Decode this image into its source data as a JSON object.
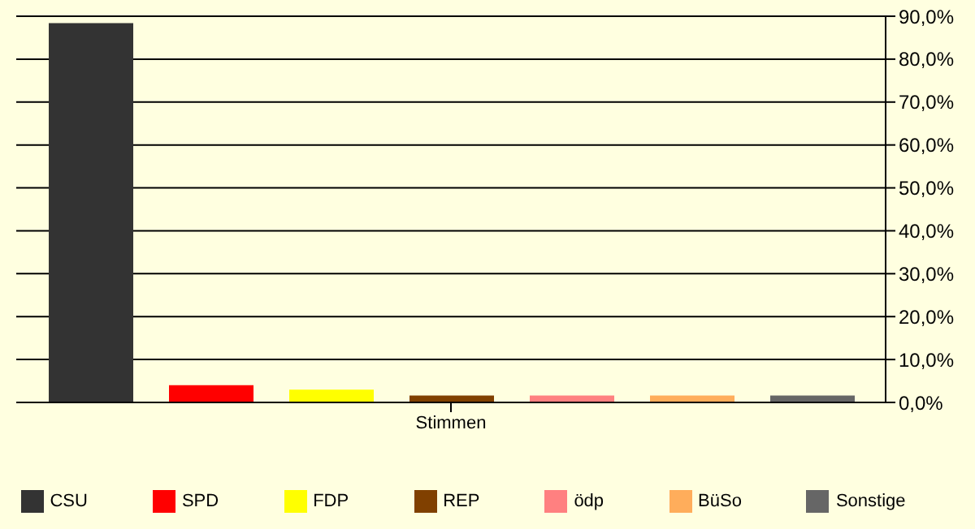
{
  "chart_data": {
    "type": "bar",
    "categories": [
      "Stimmen"
    ],
    "series": [
      {
        "name": "CSU",
        "color": "#333333",
        "values": [
          88.4
        ]
      },
      {
        "name": "SPD",
        "color": "#ff0000",
        "values": [
          4.0
        ]
      },
      {
        "name": "FDP",
        "color": "#ffff00",
        "values": [
          3.0
        ]
      },
      {
        "name": "REP",
        "color": "#804000",
        "values": [
          1.6
        ]
      },
      {
        "name": "ödp",
        "color": "#ff8080",
        "values": [
          1.6
        ]
      },
      {
        "name": "BüSo",
        "color": "#ffad5b",
        "values": [
          1.6
        ]
      },
      {
        "name": "Sonstige",
        "color": "#666666",
        "values": [
          1.6
        ]
      }
    ],
    "ylim": [
      0,
      90
    ],
    "yticks": [
      {
        "value": 0,
        "label": "0,0%"
      },
      {
        "value": 10,
        "label": "10,0%"
      },
      {
        "value": 20,
        "label": "20,0%"
      },
      {
        "value": 30,
        "label": "30,0%"
      },
      {
        "value": 40,
        "label": "40,0%"
      },
      {
        "value": 50,
        "label": "50,0%"
      },
      {
        "value": 60,
        "label": "60,0%"
      },
      {
        "value": 70,
        "label": "70,0%"
      },
      {
        "value": 80,
        "label": "80,0%"
      },
      {
        "value": 90,
        "label": "90,0%"
      }
    ],
    "grid": "y",
    "legend": "bottom"
  }
}
